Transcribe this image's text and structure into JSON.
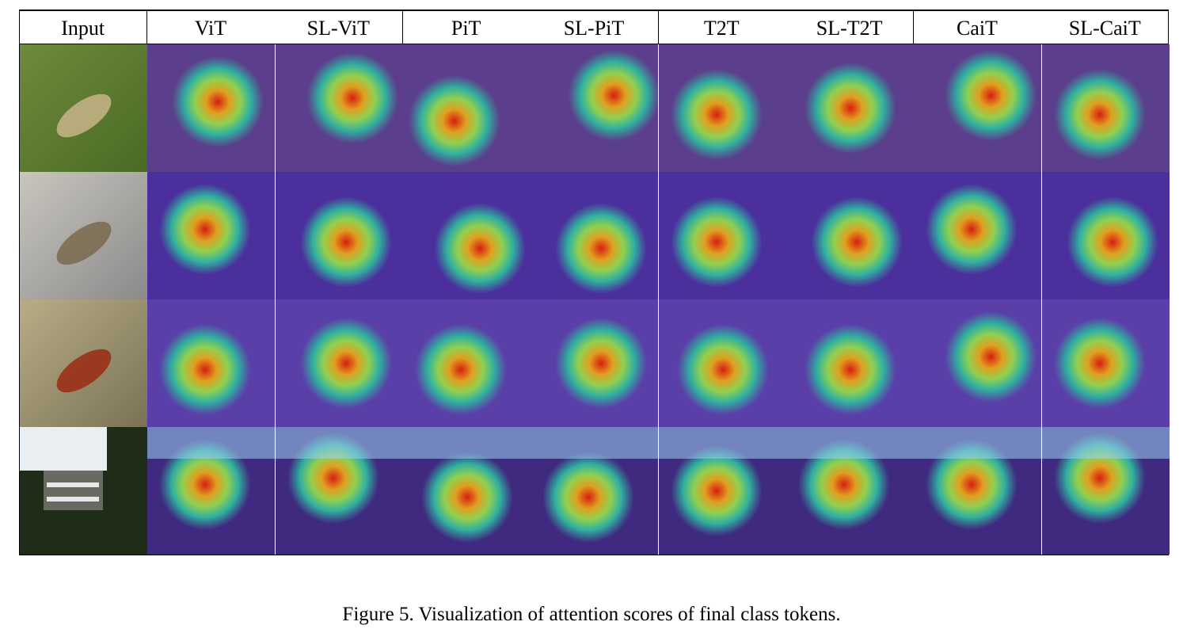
{
  "figure": {
    "columns": [
      "Input",
      "ViT",
      "SL-ViT",
      "PiT",
      "SL-PiT",
      "T2T",
      "SL-T2T",
      "CaiT",
      "SL-CaiT"
    ],
    "rows": [
      {
        "subject": "grasshopper",
        "input_colors": [
          "#4a6a24",
          "#6e8a3c",
          "#c8b48a"
        ]
      },
      {
        "subject": "insect on gravel",
        "input_colors": [
          "#8a8a8a",
          "#c9c6bf",
          "#7a6a4e"
        ]
      },
      {
        "subject": "spider on screen",
        "input_colors": [
          "#7a7256",
          "#b8ad86",
          "#9a2a14"
        ]
      },
      {
        "subject": "house among trees",
        "input_colors": [
          "#1f2d18",
          "#e8eef2",
          "#6a6a62"
        ]
      }
    ]
  },
  "caption": "Figure 5. Visualization of attention scores of final class tokens."
}
